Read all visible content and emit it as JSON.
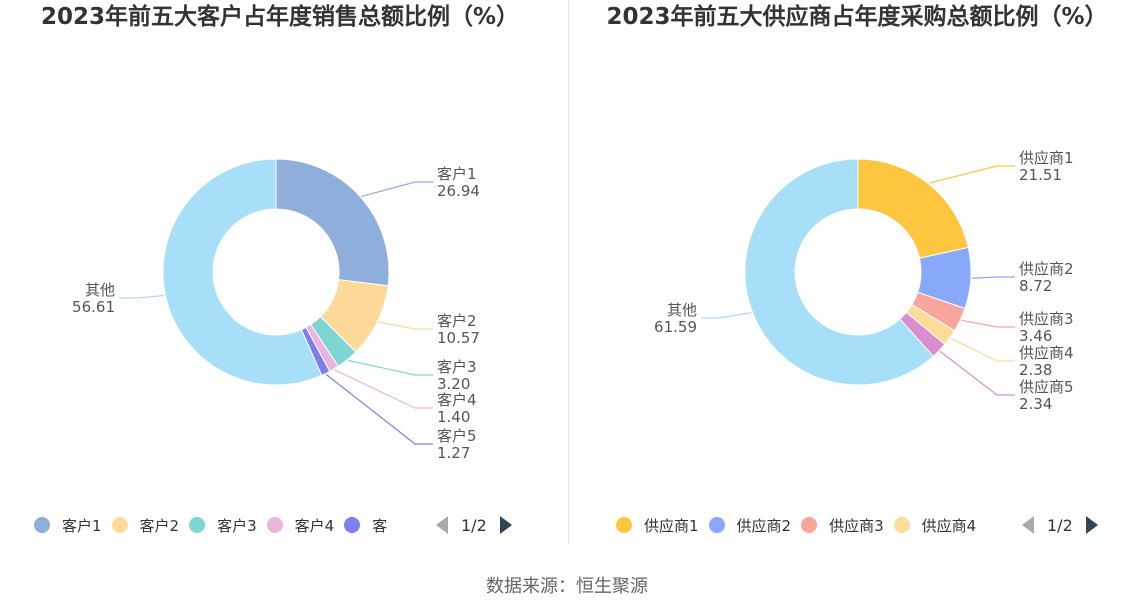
{
  "source": "数据来源：恒生聚源",
  "chart_data": [
    {
      "type": "pie",
      "title": "2023年前五大客户占年度销售总额比例（%）",
      "donut": true,
      "slices": [
        {
          "name": "客户1",
          "value": 26.94,
          "label_value": "26.94",
          "color": "#8eaedc"
        },
        {
          "name": "客户2",
          "value": 10.57,
          "label_value": "10.57",
          "color": "#fdd99a"
        },
        {
          "name": "客户3",
          "value": 3.2,
          "label_value": "3.20",
          "color": "#7ed6d2"
        },
        {
          "name": "客户4",
          "value": 1.4,
          "label_value": "1.40",
          "color": "#eab5dc"
        },
        {
          "name": "客户5",
          "value": 1.27,
          "label_value": "1.27",
          "color": "#7b7ff0"
        },
        {
          "name": "其他",
          "value": 56.61,
          "label_value": "56.61",
          "color": "#a8dff8"
        }
      ],
      "legend": {
        "placement": "bottom",
        "items": [
          "客户1",
          "客户2",
          "客户3",
          "客户4",
          "客"
        ],
        "page": "1/2"
      }
    },
    {
      "type": "pie",
      "title": "2023年前五大供应商占年度采购总额比例（%）",
      "donut": true,
      "slices": [
        {
          "name": "供应商1",
          "value": 21.51,
          "label_value": "21.51",
          "color": "#fec53e"
        },
        {
          "name": "供应商2",
          "value": 8.72,
          "label_value": "8.72",
          "color": "#88a8fa"
        },
        {
          "name": "供应商3",
          "value": 3.46,
          "label_value": "3.46",
          "color": "#f9a59d"
        },
        {
          "name": "供应商4",
          "value": 2.38,
          "label_value": "2.38",
          "color": "#fddc9a"
        },
        {
          "name": "供应商5",
          "value": 2.34,
          "label_value": "2.34",
          "color": "#d98fcf"
        },
        {
          "name": "其他",
          "value": 61.59,
          "label_value": "61.59",
          "color": "#a8dff8"
        }
      ],
      "legend": {
        "placement": "bottom",
        "items": [
          "供应商1",
          "供应商2",
          "供应商3",
          "供应商4"
        ],
        "page": "1/2"
      }
    }
  ]
}
